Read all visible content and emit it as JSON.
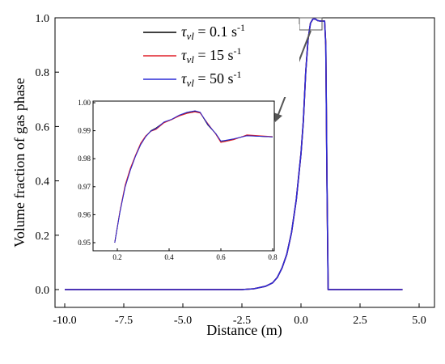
{
  "chart_data": {
    "type": "line",
    "xlabel": "Distance (m)",
    "ylabel": "Volume fraction of gas phase",
    "xlim": [
      -10.0,
      5.0
    ],
    "ylim": [
      0.0,
      1.0
    ],
    "x_ticks": [
      "-10.0",
      "-7.5",
      "-5.0",
      "-2.5",
      "0.0",
      "2.5",
      "5.0"
    ],
    "y_ticks": [
      "0.0",
      "0.2",
      "0.4",
      "0.6",
      "0.8",
      "1.0"
    ],
    "legend": {
      "placement": "top-right",
      "entries": [
        {
          "symbol": "τ",
          "sub": "vl",
          "value": " = 0.1 s",
          "sup": "-1",
          "color": "#000000"
        },
        {
          "symbol": "τ",
          "sub": "vl",
          "value": " = 15 s",
          "sup": "-1",
          "color": "#e0202a"
        },
        {
          "symbol": "τ",
          "sub": "vl",
          "value": " = 50 s",
          "sup": "-1",
          "color": "#2b2bd6"
        }
      ]
    },
    "series": [
      {
        "color": "#000000",
        "x": [
          -10.0,
          -2.5,
          -2.0,
          -1.5,
          -1.2,
          -1.0,
          -0.8,
          -0.6,
          -0.4,
          -0.2,
          0.0,
          0.1,
          0.2,
          0.3,
          0.4,
          0.5,
          0.6,
          0.7,
          0.8,
          0.9,
          1.0,
          1.05,
          1.1,
          1.15,
          4.3
        ],
        "y": [
          0.0,
          0.0,
          0.003,
          0.012,
          0.025,
          0.045,
          0.08,
          0.13,
          0.21,
          0.33,
          0.5,
          0.62,
          0.8,
          0.92,
          0.98,
          0.995,
          0.996,
          0.99,
          0.988,
          0.988,
          0.988,
          0.9,
          0.4,
          0.0,
          0.0
        ]
      },
      {
        "color": "#e0202a",
        "x": [
          -10.0,
          -2.5,
          -2.0,
          -1.5,
          -1.2,
          -1.0,
          -0.8,
          -0.6,
          -0.4,
          -0.2,
          0.0,
          0.1,
          0.2,
          0.3,
          0.4,
          0.5,
          0.6,
          0.7,
          0.8,
          0.9,
          1.0,
          1.05,
          1.1,
          1.15,
          4.3
        ],
        "y": [
          0.0,
          0.0,
          0.003,
          0.012,
          0.025,
          0.045,
          0.08,
          0.13,
          0.21,
          0.33,
          0.5,
          0.62,
          0.8,
          0.92,
          0.98,
          0.995,
          0.996,
          0.99,
          0.988,
          0.988,
          0.988,
          0.9,
          0.4,
          0.0,
          0.0
        ]
      },
      {
        "color": "#2b2bd6",
        "x": [
          -10.0,
          -2.5,
          -2.0,
          -1.5,
          -1.2,
          -1.0,
          -0.8,
          -0.6,
          -0.4,
          -0.2,
          0.0,
          0.1,
          0.2,
          0.3,
          0.4,
          0.5,
          0.6,
          0.7,
          0.8,
          0.9,
          1.0,
          1.05,
          1.1,
          1.15,
          4.3
        ],
        "y": [
          0.0,
          0.0,
          0.003,
          0.012,
          0.025,
          0.045,
          0.08,
          0.13,
          0.21,
          0.33,
          0.5,
          0.62,
          0.8,
          0.92,
          0.98,
          0.995,
          0.996,
          0.99,
          0.988,
          0.988,
          0.988,
          0.9,
          0.4,
          0.0,
          0.0
        ]
      }
    ],
    "inset": {
      "xlim": [
        0.2,
        0.8
      ],
      "ylim": [
        0.95,
        1.0
      ],
      "x_ticks": [
        "0.2",
        "0.4",
        "0.6",
        "0.8"
      ],
      "y_ticks": [
        "0.95",
        "0.96",
        "0.97",
        "0.98",
        "0.99",
        "1.00"
      ],
      "series": [
        {
          "color": "#000000",
          "x": [
            0.19,
            0.21,
            0.23,
            0.25,
            0.27,
            0.29,
            0.31,
            0.33,
            0.35,
            0.38,
            0.41,
            0.44,
            0.47,
            0.5,
            0.52,
            0.55,
            0.58,
            0.6,
            0.62,
            0.65,
            0.7,
            0.75,
            0.8
          ],
          "y": [
            0.95,
            0.961,
            0.97,
            0.976,
            0.981,
            0.985,
            0.988,
            0.99,
            0.991,
            0.993,
            0.994,
            0.9955,
            0.9965,
            0.997,
            0.9965,
            0.992,
            0.989,
            0.9862,
            0.9865,
            0.987,
            0.9883,
            0.988,
            0.9878
          ]
        },
        {
          "color": "#e0202a",
          "x": [
            0.19,
            0.21,
            0.23,
            0.25,
            0.27,
            0.29,
            0.31,
            0.33,
            0.35,
            0.38,
            0.41,
            0.44,
            0.47,
            0.5,
            0.52,
            0.55,
            0.58,
            0.6,
            0.62,
            0.65,
            0.7,
            0.75,
            0.8
          ],
          "y": [
            0.95,
            0.9612,
            0.9705,
            0.9765,
            0.9812,
            0.9855,
            0.9882,
            0.9898,
            0.9905,
            0.9928,
            0.994,
            0.9953,
            0.9962,
            0.9967,
            0.9963,
            0.9925,
            0.9888,
            0.9858,
            0.9862,
            0.9868,
            0.9885,
            0.9882,
            0.9879
          ]
        },
        {
          "color": "#2b2bd6",
          "x": [
            0.19,
            0.21,
            0.23,
            0.25,
            0.27,
            0.29,
            0.31,
            0.33,
            0.35,
            0.38,
            0.41,
            0.44,
            0.47,
            0.5,
            0.52,
            0.55,
            0.58,
            0.6,
            0.62,
            0.65,
            0.7,
            0.75,
            0.8
          ],
          "y": [
            0.95,
            0.9608,
            0.9698,
            0.9758,
            0.9808,
            0.985,
            0.9879,
            0.9899,
            0.9908,
            0.9931,
            0.9941,
            0.9956,
            0.9966,
            0.9971,
            0.9966,
            0.9922,
            0.989,
            0.9863,
            0.9866,
            0.9871,
            0.9882,
            0.988,
            0.9878
          ]
        }
      ]
    }
  }
}
